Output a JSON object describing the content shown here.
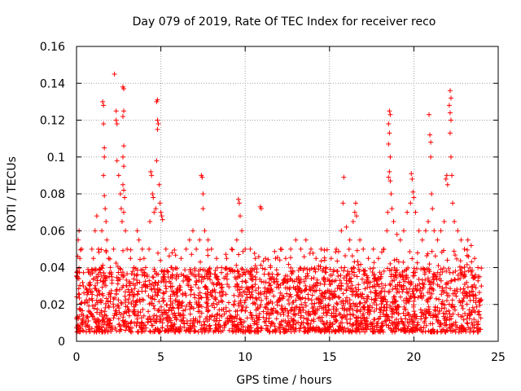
{
  "chart_data": {
    "type": "scatter",
    "title": "Day 079 of 2019, Rate Of TEC Index for receiver reco",
    "xlabel": "GPS time / hours",
    "ylabel": "ROTI / TECUs",
    "xlim": [
      0,
      25
    ],
    "ylim": [
      0,
      0.16
    ],
    "xticks": [
      0,
      5,
      10,
      15,
      20,
      25
    ],
    "xtick_labels": [
      "0",
      "5",
      "10",
      "15",
      "20",
      "25"
    ],
    "yticks": [
      0,
      0.02,
      0.04,
      0.06,
      0.08,
      0.1,
      0.12,
      0.14,
      0.16
    ],
    "ytick_labels": [
      "0",
      "0.02",
      "0.04",
      "0.06",
      "0.08",
      "0.1",
      "0.12",
      "0.14",
      "0.16"
    ],
    "grid": true,
    "marker": "+",
    "color": "#ff0000",
    "series": [
      {
        "name": "ROTI",
        "points": [
          [
            0.05,
            0.035
          ],
          [
            0.1,
            0.055
          ],
          [
            0.15,
            0.06
          ],
          [
            0.2,
            0.045
          ],
          [
            0.3,
            0.05
          ],
          [
            0.4,
            0.03
          ],
          [
            0.6,
            0.028
          ],
          [
            0.8,
            0.032
          ],
          [
            1.0,
            0.045
          ],
          [
            1.1,
            0.06
          ],
          [
            1.2,
            0.068
          ],
          [
            1.3,
            0.05
          ],
          [
            1.5,
            0.06
          ],
          [
            1.55,
            0.13
          ],
          [
            1.6,
            0.128
          ],
          [
            1.6,
            0.118
          ],
          [
            1.65,
            0.105
          ],
          [
            1.65,
            0.1
          ],
          [
            1.6,
            0.09
          ],
          [
            1.65,
            0.079
          ],
          [
            1.7,
            0.072
          ],
          [
            1.75,
            0.065
          ],
          [
            1.8,
            0.055
          ],
          [
            1.9,
            0.045
          ],
          [
            2.0,
            0.04
          ],
          [
            2.1,
            0.035
          ],
          [
            2.2,
            0.05
          ],
          [
            2.25,
            0.145
          ],
          [
            2.35,
            0.125
          ],
          [
            2.35,
            0.12
          ],
          [
            2.4,
            0.118
          ],
          [
            2.4,
            0.098
          ],
          [
            2.5,
            0.09
          ],
          [
            2.6,
            0.08
          ],
          [
            2.65,
            0.072
          ],
          [
            2.7,
            0.065
          ],
          [
            2.75,
            0.138
          ],
          [
            2.8,
            0.137
          ],
          [
            2.8,
            0.125
          ],
          [
            2.75,
            0.122
          ],
          [
            2.8,
            0.106
          ],
          [
            2.75,
            0.1
          ],
          [
            2.8,
            0.095
          ],
          [
            2.75,
            0.085
          ],
          [
            2.8,
            0.082
          ],
          [
            2.85,
            0.078
          ],
          [
            2.8,
            0.07
          ],
          [
            2.9,
            0.06
          ],
          [
            3.0,
            0.05
          ],
          [
            3.2,
            0.045
          ],
          [
            3.4,
            0.04
          ],
          [
            3.6,
            0.06
          ],
          [
            3.7,
            0.055
          ],
          [
            3.9,
            0.05
          ],
          [
            4.0,
            0.045
          ],
          [
            4.1,
            0.04
          ],
          [
            4.3,
            0.05
          ],
          [
            4.35,
            0.065
          ],
          [
            4.4,
            0.092
          ],
          [
            4.45,
            0.09
          ],
          [
            4.5,
            0.08
          ],
          [
            4.55,
            0.078
          ],
          [
            4.6,
            0.07
          ],
          [
            4.7,
            0.072
          ],
          [
            4.75,
            0.13
          ],
          [
            4.8,
            0.131
          ],
          [
            4.8,
            0.12
          ],
          [
            4.85,
            0.118
          ],
          [
            4.8,
            0.115
          ],
          [
            4.75,
            0.098
          ],
          [
            4.9,
            0.085
          ],
          [
            4.95,
            0.075
          ],
          [
            5.0,
            0.07
          ],
          [
            5.05,
            0.068
          ],
          [
            5.1,
            0.066
          ],
          [
            5.3,
            0.05
          ],
          [
            5.6,
            0.04
          ],
          [
            5.9,
            0.035
          ],
          [
            6.2,
            0.045
          ],
          [
            6.5,
            0.05
          ],
          [
            6.7,
            0.055
          ],
          [
            6.9,
            0.06
          ],
          [
            7.1,
            0.05
          ],
          [
            7.3,
            0.055
          ],
          [
            7.4,
            0.09
          ],
          [
            7.45,
            0.089
          ],
          [
            7.5,
            0.08
          ],
          [
            7.5,
            0.072
          ],
          [
            7.6,
            0.06
          ],
          [
            7.8,
            0.055
          ],
          [
            8.0,
            0.05
          ],
          [
            8.3,
            0.045
          ],
          [
            8.6,
            0.04
          ],
          [
            8.9,
            0.045
          ],
          [
            9.2,
            0.05
          ],
          [
            9.5,
            0.055
          ],
          [
            9.6,
            0.077
          ],
          [
            9.65,
            0.075
          ],
          [
            9.7,
            0.068
          ],
          [
            9.8,
            0.06
          ],
          [
            10.0,
            0.05
          ],
          [
            10.3,
            0.05
          ],
          [
            10.6,
            0.045
          ],
          [
            10.9,
            0.073
          ],
          [
            10.95,
            0.072
          ],
          [
            11.2,
            0.045
          ],
          [
            11.5,
            0.04
          ],
          [
            11.8,
            0.045
          ],
          [
            12.1,
            0.05
          ],
          [
            12.4,
            0.045
          ],
          [
            12.7,
            0.05
          ],
          [
            13.0,
            0.055
          ],
          [
            13.3,
            0.05
          ],
          [
            13.6,
            0.055
          ],
          [
            13.9,
            0.05
          ],
          [
            14.2,
            0.045
          ],
          [
            14.5,
            0.05
          ],
          [
            14.8,
            0.04
          ],
          [
            15.1,
            0.045
          ],
          [
            15.4,
            0.05
          ],
          [
            15.7,
            0.06
          ],
          [
            15.8,
            0.075
          ],
          [
            15.85,
            0.089
          ],
          [
            16.0,
            0.062
          ],
          [
            16.2,
            0.055
          ],
          [
            16.4,
            0.065
          ],
          [
            16.5,
            0.07
          ],
          [
            16.55,
            0.075
          ],
          [
            16.6,
            0.068
          ],
          [
            16.8,
            0.055
          ],
          [
            17.0,
            0.05
          ],
          [
            17.3,
            0.045
          ],
          [
            17.6,
            0.05
          ],
          [
            17.9,
            0.045
          ],
          [
            18.2,
            0.05
          ],
          [
            18.4,
            0.06
          ],
          [
            18.45,
            0.07
          ],
          [
            18.5,
            0.118
          ],
          [
            18.55,
            0.125
          ],
          [
            18.6,
            0.123
          ],
          [
            18.55,
            0.113
          ],
          [
            18.5,
            0.107
          ],
          [
            18.6,
            0.1
          ],
          [
            18.55,
            0.092
          ],
          [
            18.5,
            0.089
          ],
          [
            18.6,
            0.087
          ],
          [
            18.65,
            0.08
          ],
          [
            18.7,
            0.072
          ],
          [
            18.8,
            0.065
          ],
          [
            19.0,
            0.058
          ],
          [
            19.2,
            0.055
          ],
          [
            19.4,
            0.06
          ],
          [
            19.6,
            0.07
          ],
          [
            19.8,
            0.075
          ],
          [
            19.85,
            0.091
          ],
          [
            19.9,
            0.088
          ],
          [
            19.95,
            0.081
          ],
          [
            20.0,
            0.078
          ],
          [
            20.1,
            0.07
          ],
          [
            20.3,
            0.06
          ],
          [
            20.5,
            0.055
          ],
          [
            20.7,
            0.06
          ],
          [
            20.85,
            0.065
          ],
          [
            20.9,
            0.123
          ],
          [
            20.95,
            0.112
          ],
          [
            21.0,
            0.108
          ],
          [
            21.0,
            0.1
          ],
          [
            21.05,
            0.08
          ],
          [
            21.1,
            0.072
          ],
          [
            21.2,
            0.06
          ],
          [
            21.4,
            0.055
          ],
          [
            21.6,
            0.06
          ],
          [
            21.8,
            0.065
          ],
          [
            21.9,
            0.088
          ],
          [
            21.95,
            0.09
          ],
          [
            22.0,
            0.085
          ],
          [
            22.1,
            0.128
          ],
          [
            22.15,
            0.136
          ],
          [
            22.2,
            0.132
          ],
          [
            22.15,
            0.124
          ],
          [
            22.2,
            0.12
          ],
          [
            22.15,
            0.113
          ],
          [
            22.2,
            0.1
          ],
          [
            22.25,
            0.09
          ],
          [
            22.3,
            0.075
          ],
          [
            22.4,
            0.065
          ],
          [
            22.6,
            0.06
          ],
          [
            22.8,
            0.055
          ],
          [
            23.0,
            0.05
          ],
          [
            23.2,
            0.055
          ],
          [
            23.4,
            0.052
          ],
          [
            23.6,
            0.045
          ],
          [
            23.8,
            0.04
          ],
          [
            23.9,
            0.035
          ],
          [
            24.0,
            0.03
          ]
        ]
      }
    ]
  }
}
